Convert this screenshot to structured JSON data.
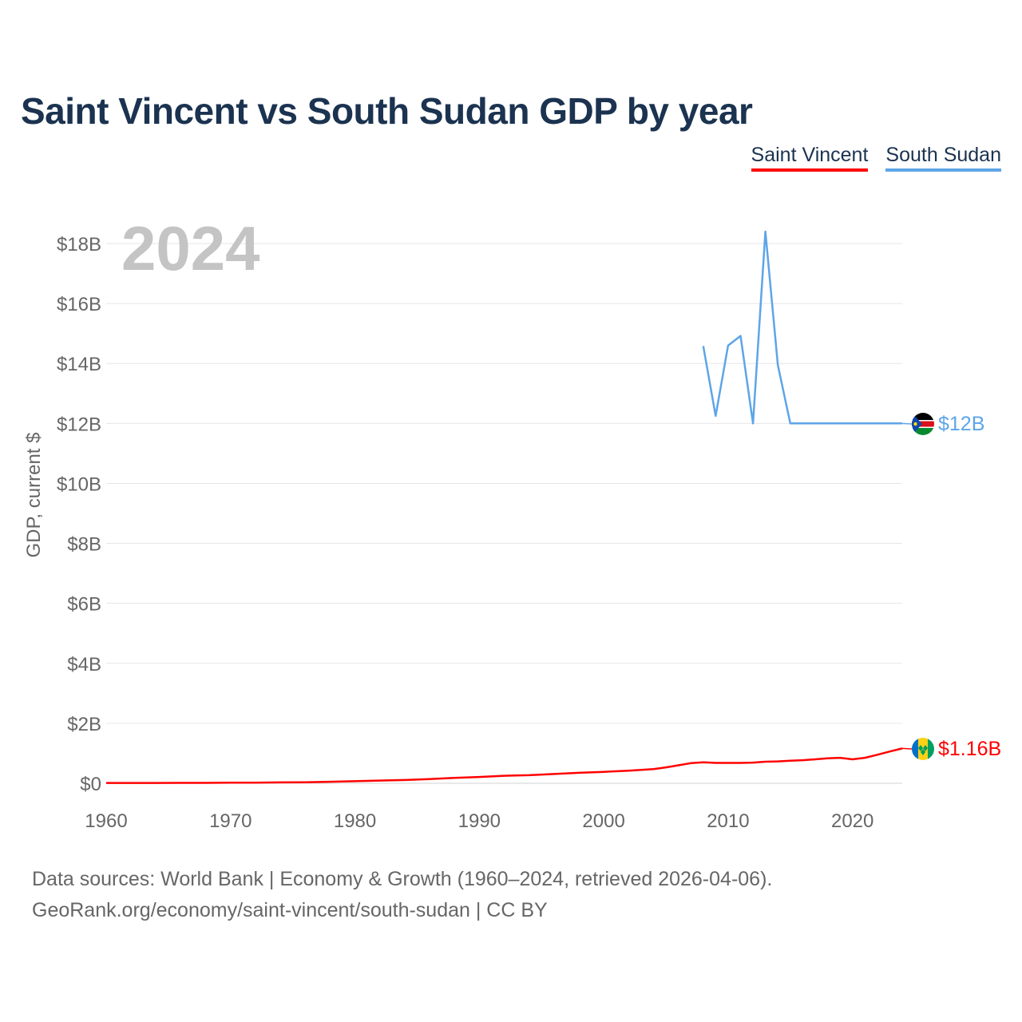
{
  "title": "Saint Vincent vs South Sudan GDP by year",
  "year_label": "2024",
  "footer": {
    "line1": "Data sources: World Bank | Economy & Growth (1960–2024, retrieved 2026-04-06).",
    "line2": "GeoRank.org/economy/saint-vincent/south-sudan | CC BY"
  },
  "colors": {
    "saint_vincent": "#ff0000",
    "south_sudan": "#5da5e8",
    "title": "#1b3350",
    "grid": "#e6e6e6"
  },
  "chart_data": {
    "type": "line",
    "title": "Saint Vincent vs South Sudan GDP by year",
    "xlabel": "",
    "ylabel": "GDP, current $",
    "xlim": [
      1960,
      2024
    ],
    "ylim": [
      0,
      18
    ],
    "y_unit": "billion US$",
    "x_ticks": [
      1960,
      1970,
      1980,
      1990,
      2000,
      2010,
      2020
    ],
    "y_ticks": [
      0,
      2,
      4,
      6,
      8,
      10,
      12,
      14,
      16,
      18
    ],
    "y_tick_labels": [
      "$0",
      "$2B",
      "$4B",
      "$6B",
      "$8B",
      "$10B",
      "$12B",
      "$14B",
      "$16B",
      "$18B"
    ],
    "grid": true,
    "legend": "top-right",
    "series": [
      {
        "name": "Saint Vincent",
        "color": "#ff0000",
        "end_label": "$1.16B",
        "flag": "saint-vincent-flag-icon",
        "points": [
          [
            1960,
            0.01
          ],
          [
            1962,
            0.01
          ],
          [
            1964,
            0.01
          ],
          [
            1966,
            0.012
          ],
          [
            1968,
            0.014
          ],
          [
            1970,
            0.018
          ],
          [
            1972,
            0.022
          ],
          [
            1974,
            0.03
          ],
          [
            1976,
            0.035
          ],
          [
            1978,
            0.05
          ],
          [
            1980,
            0.07
          ],
          [
            1982,
            0.09
          ],
          [
            1984,
            0.11
          ],
          [
            1986,
            0.14
          ],
          [
            1988,
            0.18
          ],
          [
            1990,
            0.21
          ],
          [
            1992,
            0.25
          ],
          [
            1994,
            0.27
          ],
          [
            1996,
            0.31
          ],
          [
            1998,
            0.35
          ],
          [
            2000,
            0.38
          ],
          [
            2002,
            0.42
          ],
          [
            2004,
            0.47
          ],
          [
            2005,
            0.53
          ],
          [
            2006,
            0.6
          ],
          [
            2007,
            0.67
          ],
          [
            2008,
            0.7
          ],
          [
            2009,
            0.68
          ],
          [
            2010,
            0.68
          ],
          [
            2011,
            0.68
          ],
          [
            2012,
            0.69
          ],
          [
            2013,
            0.72
          ],
          [
            2014,
            0.73
          ],
          [
            2015,
            0.75
          ],
          [
            2016,
            0.77
          ],
          [
            2017,
            0.8
          ],
          [
            2018,
            0.83
          ],
          [
            2019,
            0.85
          ],
          [
            2020,
            0.8
          ],
          [
            2021,
            0.85
          ],
          [
            2022,
            0.95
          ],
          [
            2023,
            1.06
          ],
          [
            2024,
            1.16
          ]
        ]
      },
      {
        "name": "South Sudan",
        "color": "#5da5e8",
        "end_label": "$12B",
        "flag": "south-sudan-flag-icon",
        "points": [
          [
            2008,
            14.58
          ],
          [
            2009,
            12.25
          ],
          [
            2010,
            14.6
          ],
          [
            2011,
            14.92
          ],
          [
            2012,
            12
          ],
          [
            2013,
            18.4
          ],
          [
            2014,
            13.95
          ],
          [
            2015,
            12.0
          ],
          [
            2016,
            12.0
          ],
          [
            2017,
            12.0
          ],
          [
            2018,
            12.0
          ],
          [
            2019,
            12.0
          ],
          [
            2020,
            12.0
          ],
          [
            2021,
            12.0
          ],
          [
            2022,
            12.0
          ],
          [
            2023,
            12.0
          ],
          [
            2024,
            12.0
          ]
        ]
      }
    ]
  }
}
